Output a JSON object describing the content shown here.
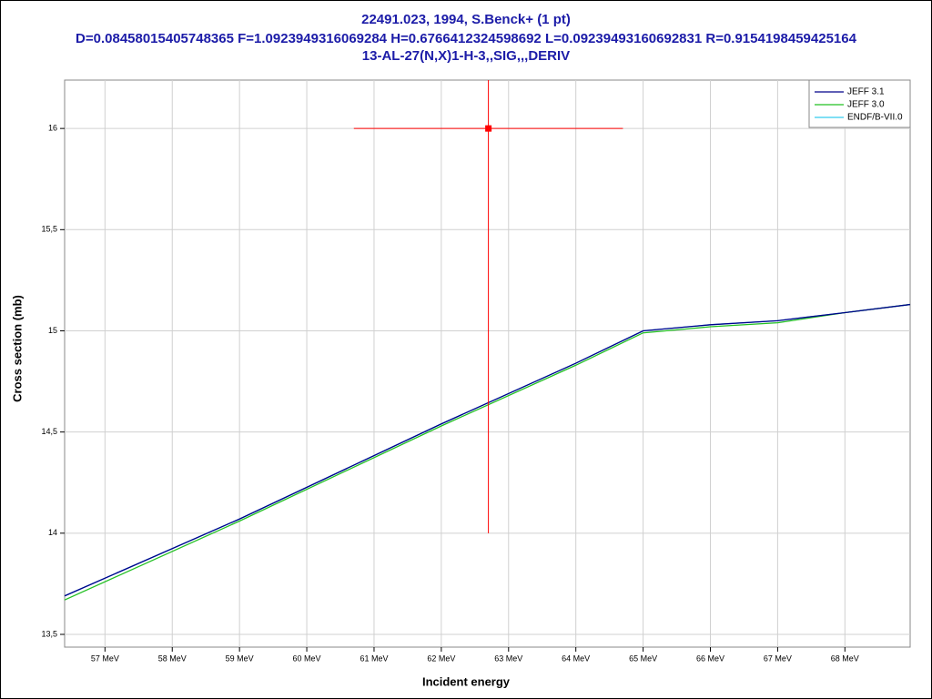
{
  "chart_data": {
    "type": "line",
    "title": "22491.023, 1994, S.Benck+ (1 pt)",
    "subtitle": "D=0.08458015405748365 F=1.0923949316069284 H=0.6766412324598692 L=0.09239493160692831 R=0.9154198459425164",
    "subtitle2": "13-AL-27(N,X)1-H-3,,SIG,,,DERIV",
    "xlabel": "Incident energy",
    "ylabel": "Cross section (mb)",
    "xlim": [
      56.4,
      68.97
    ],
    "ylim": [
      13.437,
      16.239
    ],
    "xticks": [
      {
        "value": 57,
        "label": "57 MeV"
      },
      {
        "value": 58,
        "label": "58 MeV"
      },
      {
        "value": 59,
        "label": "59 MeV"
      },
      {
        "value": 60,
        "label": "60 MeV"
      },
      {
        "value": 61,
        "label": "61 MeV"
      },
      {
        "value": 62,
        "label": "62 MeV"
      },
      {
        "value": 63,
        "label": "63 MeV"
      },
      {
        "value": 64,
        "label": "64 MeV"
      },
      {
        "value": 65,
        "label": "65 MeV"
      },
      {
        "value": 66,
        "label": "66 MeV"
      },
      {
        "value": 67,
        "label": "67 MeV"
      },
      {
        "value": 68,
        "label": "68 MeV"
      }
    ],
    "yticks": [
      {
        "value": 13.5,
        "label": "13,5"
      },
      14,
      {
        "value": 14.5,
        "label": "14,5"
      },
      15,
      {
        "value": 15.5,
        "label": "15,5"
      },
      16
    ],
    "grid": true,
    "legend": "top-right",
    "series": [
      {
        "name": "JEFF 3.1",
        "color": "#00008b",
        "x": [
          56.4,
          59,
          62,
          64,
          65,
          66,
          67,
          68,
          68.97
        ],
        "values": [
          13.69,
          14.07,
          14.54,
          14.84,
          15.0,
          15.03,
          15.05,
          15.09,
          15.13
        ]
      },
      {
        "name": "JEFF 3.0",
        "color": "#22c022",
        "x": [
          56.4,
          59,
          62,
          64,
          65,
          66,
          67,
          68,
          68.97
        ],
        "values": [
          13.67,
          14.06,
          14.53,
          14.83,
          14.99,
          15.02,
          15.04,
          15.09,
          15.13
        ]
      },
      {
        "name": "ENDF/B-VII.0",
        "color": "#33ccee",
        "x": [
          56.4,
          59,
          62,
          64,
          65,
          66,
          67,
          68,
          68.97
        ],
        "values": [
          13.69,
          14.07,
          14.54,
          14.84,
          15.0,
          15.03,
          15.05,
          15.09,
          15.13
        ]
      }
    ],
    "measurement": {
      "color": "#ff0000",
      "x": [
        62.7
      ],
      "y": [
        16.0
      ],
      "xerr": [
        2.0
      ],
      "yerr": [
        2.0
      ]
    }
  }
}
